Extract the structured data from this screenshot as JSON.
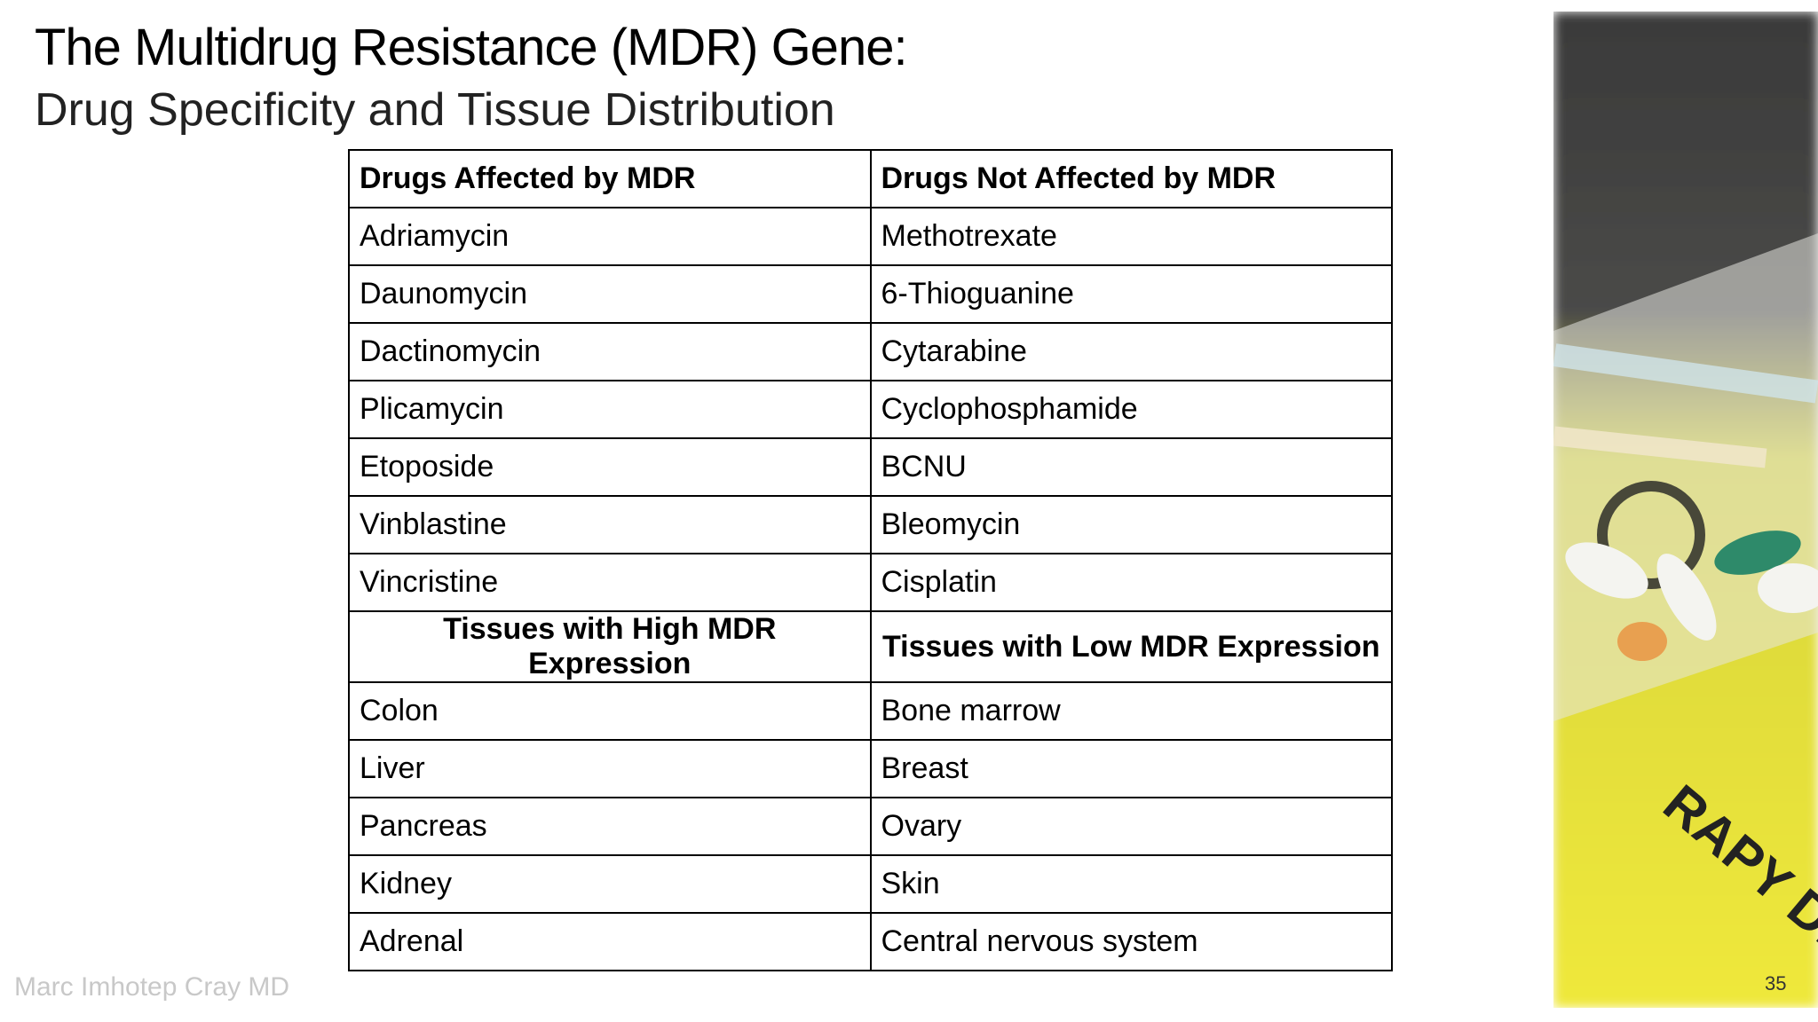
{
  "header": {
    "title": "The Multidrug Resistance (MDR) Gene:",
    "subtitle": "Drug Specificity and Tissue Distribution"
  },
  "table": {
    "header": [
      "Drugs Affected by MDR",
      "Drugs Not Affected by MDR"
    ],
    "rows": [
      [
        "Adriamycin",
        "Methotrexate"
      ],
      [
        "Daunomycin",
        "6-Thioguanine"
      ],
      [
        "Dactinomycin",
        "Cytarabine"
      ],
      [
        "Plicamycin",
        "Cyclophosphamide"
      ],
      [
        "Etoposide",
        "BCNU"
      ],
      [
        "Vinblastine",
        "Bleomycin"
      ],
      [
        "Vincristine",
        "Cisplatin"
      ]
    ],
    "subheader": [
      "Tissues with High MDR Expression",
      "Tissues with Low MDR Expression"
    ],
    "subrows": [
      [
        "Colon",
        "Bone marrow"
      ],
      [
        "Liver",
        "Breast"
      ],
      [
        "Pancreas",
        "Ovary"
      ],
      [
        "Kidney",
        "Skin"
      ],
      [
        "Adrenal",
        "Central nervous system"
      ]
    ]
  },
  "footer": {
    "author": "Marc Imhotep Cray MD",
    "page_number": "35"
  }
}
